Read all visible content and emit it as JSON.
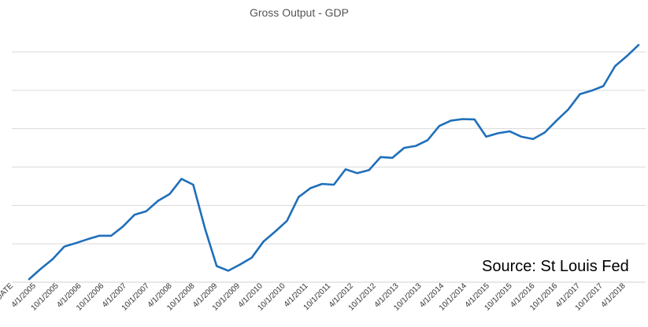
{
  "chart_data": {
    "type": "line",
    "title": "Gross Output - GDP",
    "annotation": "Source: St Louis Fed",
    "xlabel": "",
    "ylabel": "",
    "grid": true,
    "legend": "none",
    "y_axis_labels_shown": false,
    "ylim": [
      0,
      6
    ],
    "tick_labels": [
      "DATE",
      "4/1/2005",
      "10/1/2005",
      "4/1/2006",
      "10/1/2006",
      "4/1/2007",
      "10/1/2007",
      "4/1/2008",
      "10/1/2008",
      "4/1/2009",
      "10/1/2009",
      "4/1/2010",
      "10/1/2010",
      "4/1/2011",
      "10/1/2011",
      "4/1/2012",
      "10/1/2012",
      "4/1/2013",
      "10/1/2013",
      "4/1/2014",
      "10/1/2014",
      "4/1/2015",
      "10/1/2015",
      "4/1/2016",
      "10/1/2016",
      "4/1/2017",
      "10/1/2017",
      "4/1/2018"
    ],
    "series": [
      {
        "color": "#1f6fba",
        "values": [
          0.08,
          0.35,
          0.6,
          0.93,
          1.02,
          1.12,
          1.21,
          1.21,
          1.45,
          1.76,
          1.85,
          2.12,
          2.3,
          2.69,
          2.54,
          1.4,
          0.42,
          0.3,
          0.46,
          0.64,
          1.06,
          1.32,
          1.6,
          2.22,
          2.45,
          2.56,
          2.54,
          2.94,
          2.84,
          2.92,
          3.26,
          3.24,
          3.5,
          3.55,
          3.7,
          4.07,
          4.21,
          4.25,
          4.24,
          3.79,
          3.88,
          3.93,
          3.79,
          3.73,
          3.9,
          4.21,
          4.5,
          4.9,
          4.99,
          5.11,
          5.63,
          5.89,
          6.18
        ]
      }
    ]
  }
}
